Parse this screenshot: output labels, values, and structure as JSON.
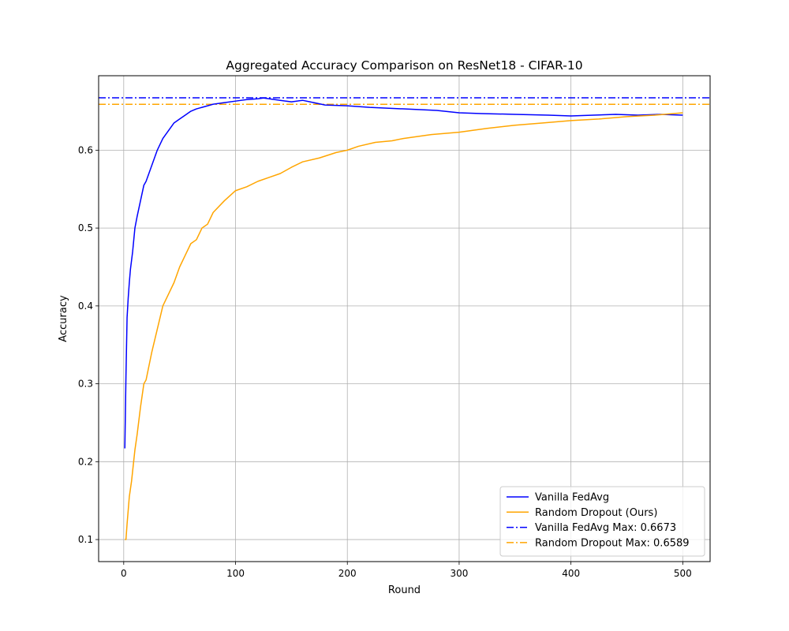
{
  "chart_data": {
    "type": "line",
    "title": "Aggregated Accuracy Comparison on ResNet18 - CIFAR-10",
    "xlabel": "Round",
    "ylabel": "Accuracy",
    "xlim": [
      -22.45,
      524.45
    ],
    "ylim": [
      0.0717,
      0.6956
    ],
    "xticks": [
      0,
      100,
      200,
      300,
      400,
      500
    ],
    "yticks": [
      0.1,
      0.2,
      0.3,
      0.4,
      0.5,
      0.6
    ],
    "grid": true,
    "legend_position": "lower-right",
    "series": [
      {
        "name": "Vanilla FedAvg",
        "color": "#0000ff",
        "style": "solid",
        "x": [
          1,
          2,
          3,
          4,
          5,
          6,
          8,
          10,
          12,
          15,
          18,
          20,
          25,
          30,
          35,
          40,
          45,
          50,
          55,
          60,
          65,
          70,
          75,
          80,
          90,
          100,
          110,
          120,
          125,
          130,
          140,
          150,
          160,
          170,
          180,
          200,
          220,
          250,
          280,
          300,
          320,
          350,
          380,
          400,
          420,
          440,
          460,
          480,
          500
        ],
        "y": [
          0.217,
          0.31,
          0.385,
          0.41,
          0.43,
          0.447,
          0.47,
          0.5,
          0.515,
          0.535,
          0.555,
          0.56,
          0.58,
          0.6,
          0.615,
          0.625,
          0.635,
          0.64,
          0.645,
          0.65,
          0.653,
          0.655,
          0.657,
          0.659,
          0.661,
          0.663,
          0.665,
          0.666,
          0.667,
          0.666,
          0.664,
          0.662,
          0.664,
          0.661,
          0.658,
          0.657,
          0.655,
          0.653,
          0.651,
          0.648,
          0.647,
          0.646,
          0.645,
          0.644,
          0.645,
          0.646,
          0.645,
          0.646,
          0.645
        ]
      },
      {
        "name": "Random Dropout (Ours)",
        "color": "#ffa500",
        "style": "solid",
        "x": [
          1,
          2,
          3,
          5,
          7,
          10,
          12,
          15,
          18,
          20,
          25,
          30,
          35,
          40,
          45,
          50,
          55,
          60,
          65,
          70,
          75,
          80,
          90,
          100,
          110,
          120,
          130,
          140,
          150,
          160,
          175,
          190,
          200,
          210,
          225,
          240,
          250,
          275,
          300,
          325,
          350,
          375,
          400,
          425,
          450,
          475,
          500
        ],
        "y": [
          0.1,
          0.1,
          0.12,
          0.155,
          0.175,
          0.215,
          0.235,
          0.27,
          0.3,
          0.305,
          0.34,
          0.37,
          0.4,
          0.415,
          0.43,
          0.45,
          0.465,
          0.48,
          0.485,
          0.5,
          0.505,
          0.52,
          0.535,
          0.548,
          0.553,
          0.56,
          0.565,
          0.57,
          0.578,
          0.585,
          0.59,
          0.597,
          0.6,
          0.605,
          0.61,
          0.612,
          0.615,
          0.62,
          0.623,
          0.628,
          0.632,
          0.635,
          0.638,
          0.64,
          0.643,
          0.645,
          0.648
        ]
      },
      {
        "name": "Vanilla FedAvg Max: 0.6673",
        "color": "#0000ff",
        "style": "dashdot",
        "hline": 0.6673
      },
      {
        "name": "Random Dropout Max: 0.6589",
        "color": "#ffa500",
        "style": "dashdot",
        "hline": 0.6589
      }
    ]
  }
}
